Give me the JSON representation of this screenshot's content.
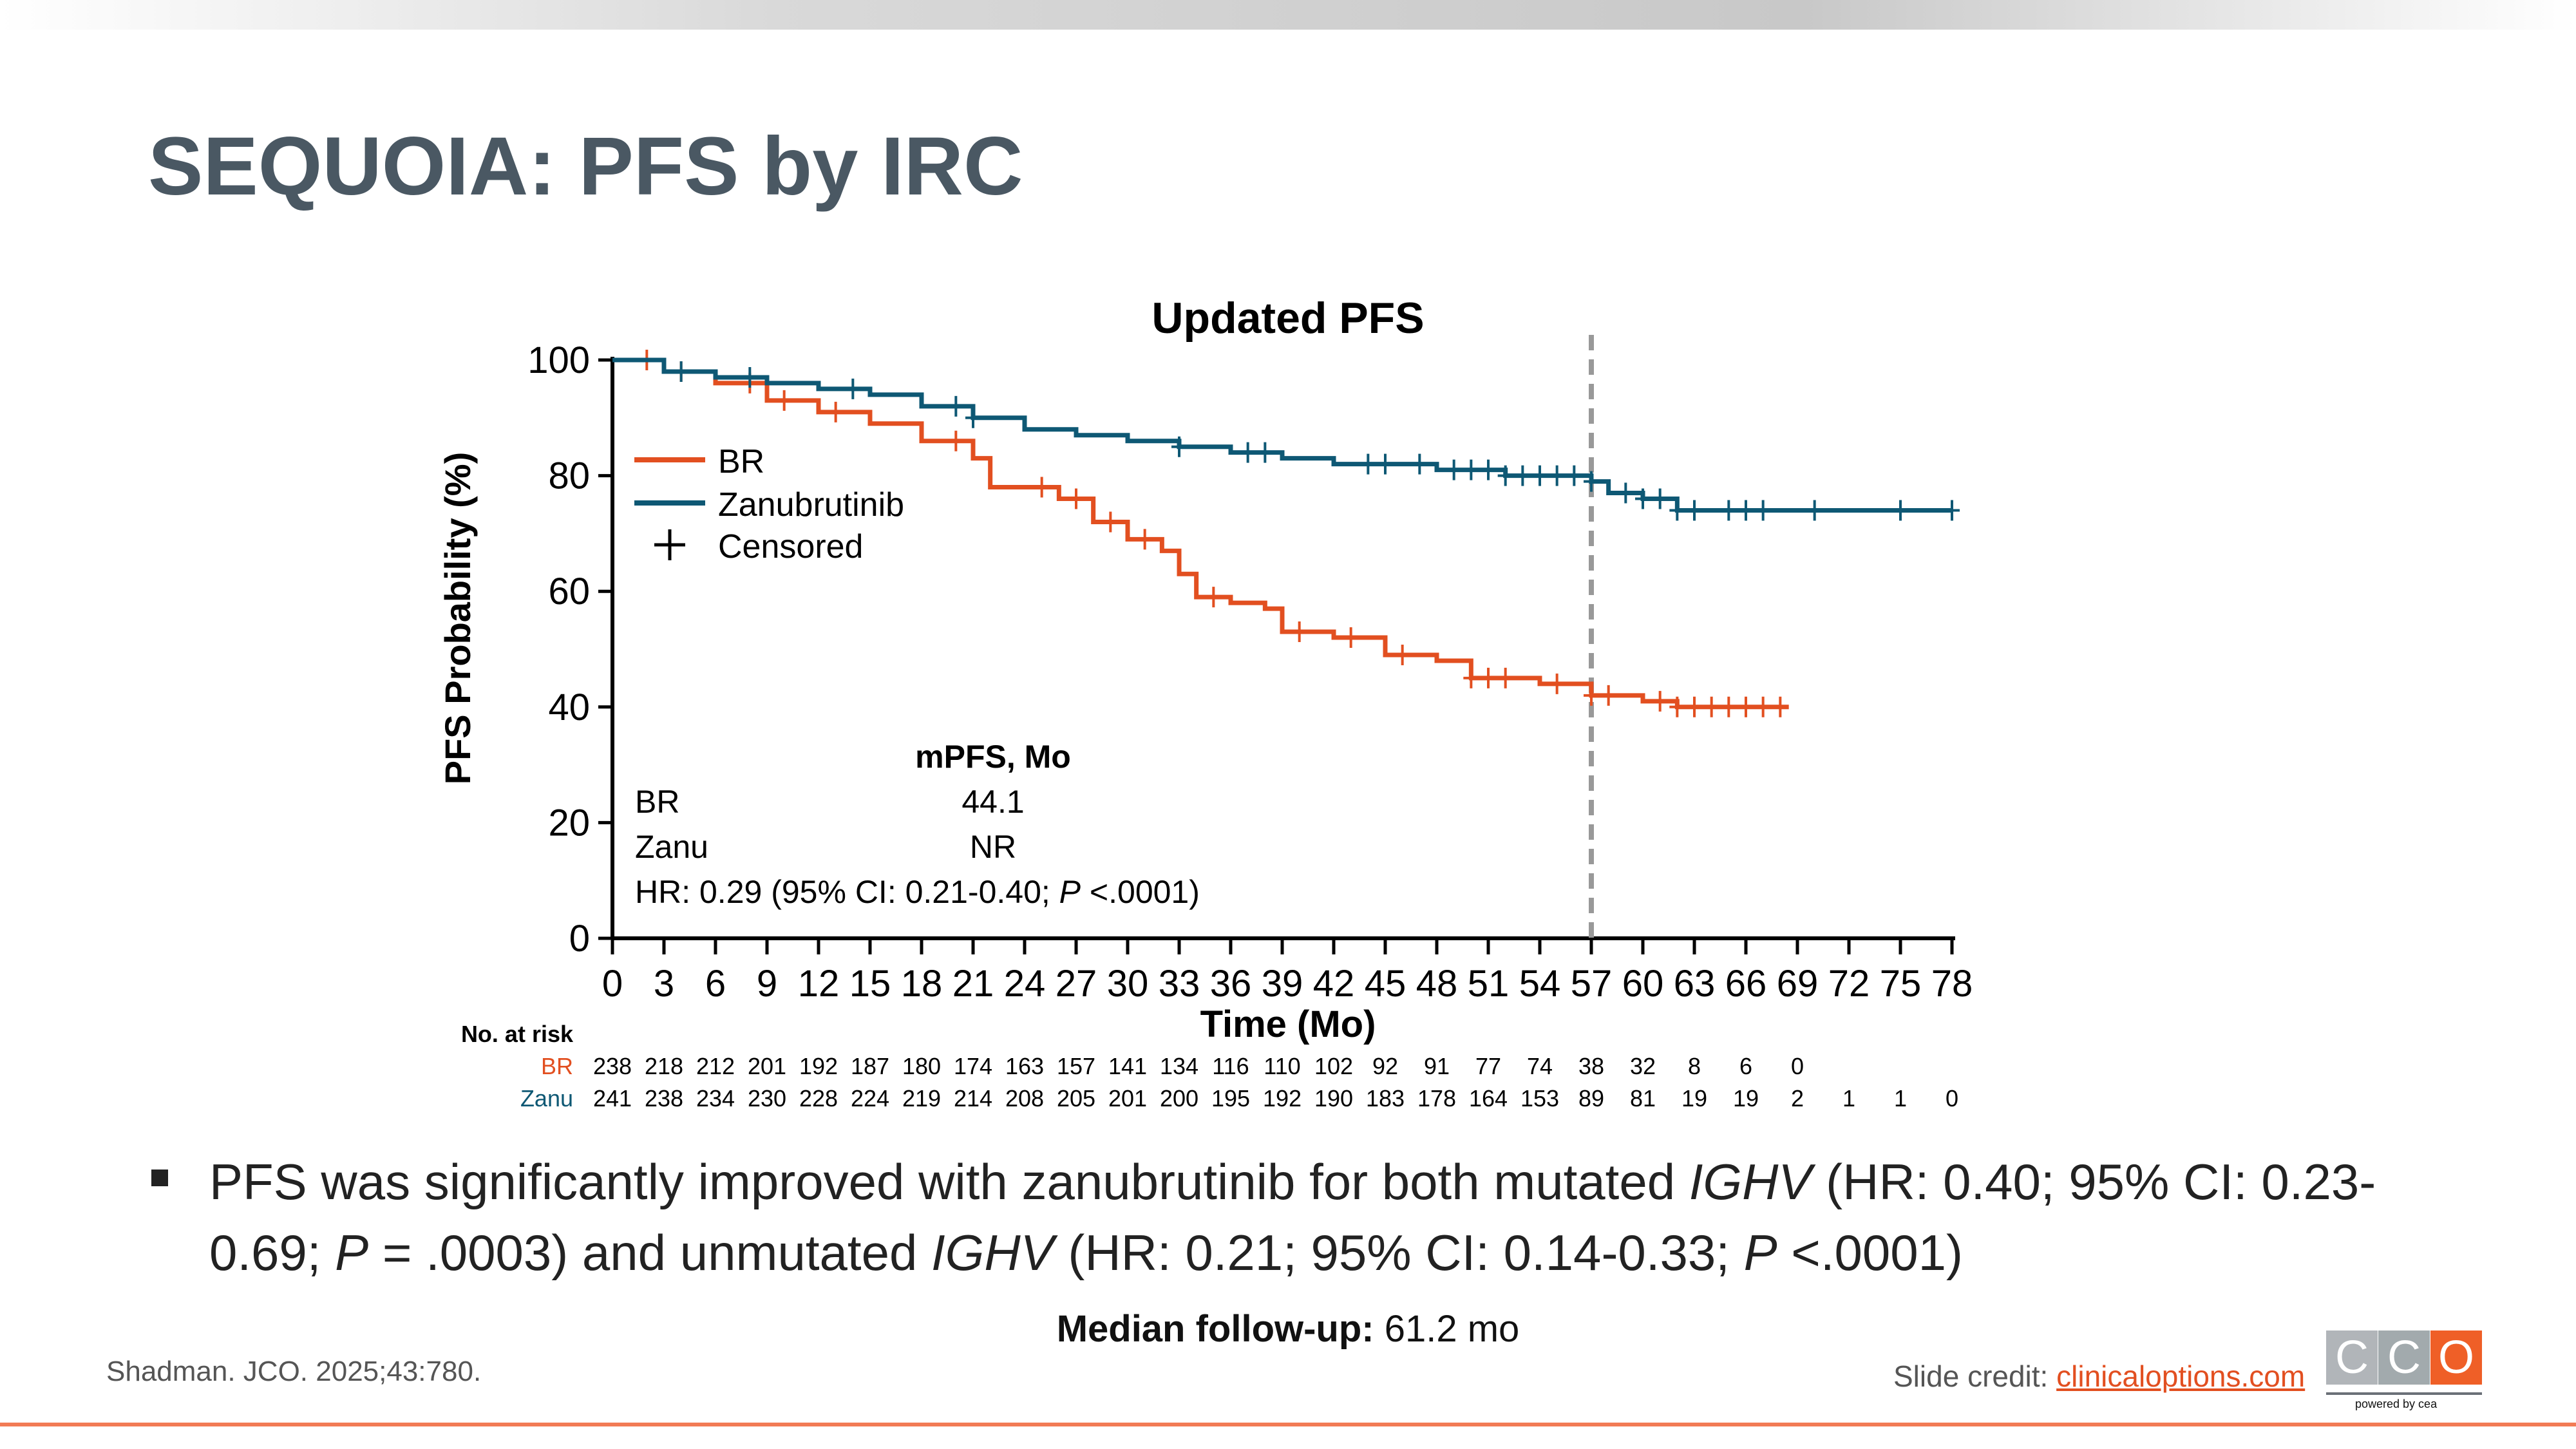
{
  "slide": {
    "title": "SEQUOIA: PFS by IRC",
    "bullet_parts": [
      "PFS was significantly improved with zanubrutinib for both mutated ",
      "IGHV",
      " (HR: 0.40; 95% CI: 0.23-0.69; ",
      "P",
      " = .0003) and unmutated ",
      "IGHV",
      " (HR: 0.21; 95% CI: 0.14-0.33; ",
      "P",
      " <.0001)"
    ],
    "followup_label": "Median follow-up:",
    "followup_value": " 61.2 mo",
    "citation": "Shadman. JCO. 2025;43:780.",
    "credit_label": "Slide credit: ",
    "credit_link": "clinicaloptions.com",
    "logo_text": [
      "C",
      "C",
      "O"
    ],
    "logo_sub": "powered by cea",
    "colors": {
      "title": "#4a5863",
      "accent": "#e24f20",
      "logo_gray1": "#b1b5b9",
      "logo_gray2": "#a2aaad",
      "logo_orange": "#ef5f27"
    }
  },
  "chart_data": {
    "type": "line",
    "title": "Updated PFS",
    "xlabel": "Time (Mo)",
    "ylabel": "PFS Probability (%)",
    "xlim": [
      0,
      78
    ],
    "ylim": [
      0,
      100
    ],
    "xticks": [
      0,
      3,
      6,
      9,
      12,
      15,
      18,
      21,
      24,
      27,
      30,
      33,
      36,
      39,
      42,
      45,
      48,
      51,
      54,
      57,
      60,
      63,
      66,
      69,
      72,
      75,
      78
    ],
    "yticks": [
      0,
      20,
      40,
      60,
      80,
      100
    ],
    "reference_line_x": 57,
    "legend": {
      "placement": "upper-left",
      "entries": [
        "BR",
        "Zanubrutinib",
        "Censored"
      ]
    },
    "series": [
      {
        "name": "BR",
        "color": "#e24f20",
        "x": [
          0,
          3,
          6,
          9,
          12,
          15,
          18,
          21,
          22,
          24,
          26,
          28,
          30,
          32,
          33,
          34,
          36,
          38,
          39,
          42,
          45,
          48,
          50,
          54,
          57,
          60,
          62,
          68.5
        ],
        "y": [
          100,
          98,
          96,
          93,
          91,
          89,
          86,
          83,
          78,
          78,
          76,
          72,
          69,
          67,
          63,
          59,
          58,
          57,
          53,
          52,
          49,
          48,
          45,
          44,
          42,
          41,
          40,
          40
        ],
        "censored_x": [
          2,
          4,
          8,
          10,
          13,
          20,
          25,
          27,
          29,
          31,
          35,
          40,
          43,
          46,
          50,
          51,
          52,
          55,
          57,
          58,
          61,
          62,
          63,
          64,
          65,
          66,
          67,
          68
        ]
      },
      {
        "name": "Zanubrutinib",
        "color": "#0e5874",
        "x": [
          0,
          3,
          6,
          9,
          12,
          15,
          18,
          21,
          24,
          27,
          30,
          33,
          36,
          39,
          42,
          48,
          52,
          57,
          58,
          60,
          62,
          78
        ],
        "y": [
          100,
          98,
          97,
          96,
          95,
          94,
          92,
          90,
          88,
          87,
          86,
          85,
          84,
          83,
          82,
          81,
          80,
          79,
          77,
          76,
          74,
          74
        ],
        "censored_x": [
          4,
          8,
          14,
          20,
          21,
          33,
          37,
          38,
          44,
          45,
          47,
          49,
          50,
          51,
          52,
          53,
          54,
          55,
          56,
          57,
          59,
          60,
          61,
          62,
          63,
          65,
          66,
          67,
          70,
          75,
          78
        ]
      }
    ],
    "annotation": {
      "header": "mPFS, Mo",
      "rows": [
        {
          "label": "BR",
          "value": "44.1"
        },
        {
          "label": "Zanu",
          "value": "NR"
        }
      ],
      "hr_parts": [
        "HR: 0.29 (95% CI: 0.21-0.40; ",
        "P",
        " <.0001)"
      ]
    },
    "at_risk": {
      "label": "No. at risk",
      "rows": [
        {
          "name": "BR",
          "values": [
            238,
            218,
            212,
            201,
            192,
            187,
            180,
            174,
            163,
            157,
            141,
            134,
            116,
            110,
            102,
            92,
            91,
            77,
            74,
            38,
            32,
            8,
            6,
            0
          ]
        },
        {
          "name": "Zanu",
          "values": [
            241,
            238,
            234,
            230,
            228,
            224,
            219,
            214,
            208,
            205,
            201,
            200,
            195,
            192,
            190,
            183,
            178,
            164,
            153,
            89,
            81,
            19,
            19,
            2,
            1,
            1,
            0
          ]
        }
      ]
    }
  }
}
